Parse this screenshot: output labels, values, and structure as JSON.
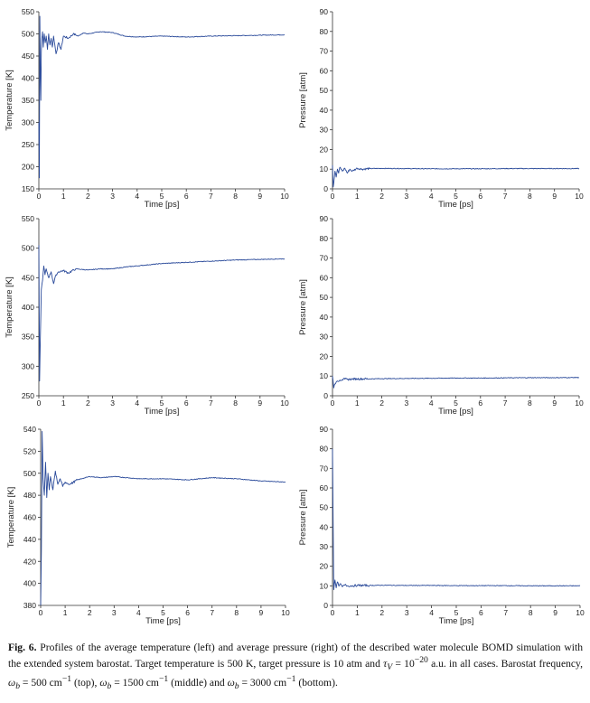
{
  "figure": {
    "caption_label": "Fig. 6.",
    "caption_part1": "Profiles of the average temperature (left) and average pressure (right) of the described water molecule BOMD simulation with the extended system barostat. Target temperature is 500 K, target pressure is 10 atm and ",
    "caption_tau": "τ",
    "caption_tau_sub": "V",
    "caption_part2": " = 10",
    "caption_exp": "−20",
    "caption_part3": " a.u. in all cases. Barostat frequency, ",
    "caption_omega1": "ω",
    "caption_b1": "b",
    "caption_part4": " = 500 cm",
    "caption_unit_exp1": "−1",
    "caption_part5": " (top), ",
    "caption_omega2": "ω",
    "caption_b2": "b",
    "caption_part6": " = 1500 cm",
    "caption_unit_exp2": "−1",
    "caption_part7": " (middle) and ",
    "caption_omega3": "ω",
    "caption_b3": "b",
    "caption_part8": " = 3000 cm",
    "caption_unit_exp3": "−1",
    "caption_part9": " (bottom)."
  },
  "chart_data": [
    {
      "type": "line",
      "row": "top",
      "quantity": "temperature",
      "xlabel": "Time [ps]",
      "ylabel": "Temperature [K]",
      "xlim": [
        0,
        10
      ],
      "ylim": [
        150,
        550
      ],
      "xticks": [
        0,
        1,
        2,
        3,
        4,
        5,
        6,
        7,
        8,
        9,
        10
      ],
      "yticks": [
        150,
        200,
        250,
        300,
        350,
        400,
        450,
        500,
        550
      ],
      "series_color": "#2a4a9a",
      "x": [
        0,
        0.02,
        0.04,
        0.06,
        0.08,
        0.1,
        0.12,
        0.15,
        0.18,
        0.22,
        0.26,
        0.3,
        0.35,
        0.4,
        0.45,
        0.5,
        0.55,
        0.6,
        0.7,
        0.8,
        0.9,
        1,
        1.2,
        1.4,
        1.6,
        1.8,
        2,
        2.5,
        3,
        3.5,
        4,
        5,
        6,
        7,
        8,
        9,
        10
      ],
      "y": [
        300,
        175,
        540,
        420,
        350,
        460,
        490,
        505,
        470,
        500,
        480,
        495,
        465,
        500,
        475,
        490,
        470,
        495,
        455,
        480,
        465,
        495,
        490,
        500,
        495,
        502,
        500,
        505,
        503,
        495,
        493,
        495,
        493,
        495,
        496,
        497,
        498
      ]
    },
    {
      "type": "line",
      "row": "top",
      "quantity": "pressure",
      "xlabel": "Time [ps]",
      "ylabel": "Pressure [atm]",
      "xlim": [
        0,
        10
      ],
      "ylim": [
        0,
        90
      ],
      "xticks": [
        0,
        1,
        2,
        3,
        4,
        5,
        6,
        7,
        8,
        9,
        10
      ],
      "yticks": [
        0,
        10,
        20,
        30,
        40,
        50,
        60,
        70,
        80,
        90
      ],
      "series_color": "#2a4a9a",
      "x": [
        0,
        0.03,
        0.06,
        0.1,
        0.15,
        0.2,
        0.25,
        0.3,
        0.4,
        0.5,
        0.6,
        0.7,
        0.8,
        1,
        1.2,
        1.5,
        2,
        3,
        4,
        5,
        6,
        7,
        8,
        9,
        10
      ],
      "y": [
        12,
        1,
        4,
        9,
        6,
        10,
        8,
        11,
        9,
        10.5,
        8,
        10,
        9,
        10.5,
        10,
        10.3,
        10.4,
        10.3,
        10.2,
        10.2,
        10.2,
        10.3,
        10.3,
        10.3,
        10.3
      ]
    },
    {
      "type": "line",
      "row": "middle",
      "quantity": "temperature",
      "xlabel": "Time [ps]",
      "ylabel": "Temperature [K]",
      "xlim": [
        0,
        10
      ],
      "ylim": [
        250,
        550
      ],
      "xticks": [
        0,
        1,
        2,
        3,
        4,
        5,
        6,
        7,
        8,
        9,
        10
      ],
      "yticks": [
        250,
        300,
        350,
        400,
        450,
        500,
        550
      ],
      "series_color": "#2a4a9a",
      "x": [
        0,
        0.03,
        0.06,
        0.1,
        0.15,
        0.2,
        0.25,
        0.3,
        0.4,
        0.5,
        0.6,
        0.7,
        0.8,
        1,
        1.2,
        1.5,
        2,
        2.5,
        3,
        3.5,
        4,
        4.5,
        5,
        6,
        7,
        8,
        9,
        10
      ],
      "y": [
        505,
        275,
        345,
        430,
        445,
        470,
        455,
        465,
        450,
        460,
        440,
        455,
        460,
        462,
        458,
        465,
        463,
        465,
        465,
        468,
        470,
        472,
        474,
        476,
        478,
        480,
        481,
        482
      ]
    },
    {
      "type": "line",
      "row": "middle",
      "quantity": "pressure",
      "xlabel": "Time [ps]",
      "ylabel": "Pressure [atm]",
      "xlim": [
        0,
        10
      ],
      "ylim": [
        0,
        90
      ],
      "xticks": [
        0,
        1,
        2,
        3,
        4,
        5,
        6,
        7,
        8,
        9,
        10
      ],
      "yticks": [
        0,
        10,
        20,
        30,
        40,
        50,
        60,
        70,
        80,
        90
      ],
      "series_color": "#2a4a9a",
      "x": [
        0,
        0.05,
        0.1,
        0.15,
        0.2,
        0.3,
        0.4,
        0.5,
        0.6,
        0.8,
        1,
        1.5,
        2,
        3,
        4,
        5,
        6,
        7,
        8,
        9,
        10
      ],
      "y": [
        10,
        4,
        6,
        7,
        7.5,
        8,
        8.2,
        8.5,
        8.3,
        8.5,
        8.6,
        8.6,
        8.7,
        8.8,
        8.9,
        9,
        9,
        9.1,
        9.2,
        9.2,
        9.3
      ]
    },
    {
      "type": "line",
      "row": "bottom",
      "quantity": "temperature",
      "xlabel": "Time [ps]",
      "ylabel": "Temperature [K]",
      "xlim": [
        0,
        10
      ],
      "ylim": [
        380,
        540
      ],
      "xticks": [
        0,
        1,
        2,
        3,
        4,
        5,
        6,
        7,
        8,
        9,
        10
      ],
      "yticks": [
        380,
        400,
        420,
        440,
        460,
        480,
        500,
        520,
        540
      ],
      "series_color": "#2a4a9a",
      "x": [
        0,
        0.03,
        0.06,
        0.1,
        0.15,
        0.2,
        0.25,
        0.3,
        0.35,
        0.4,
        0.5,
        0.6,
        0.7,
        0.8,
        0.9,
        1,
        1.2,
        1.5,
        2,
        2.5,
        3,
        3.5,
        4,
        5,
        6,
        7,
        8,
        9,
        10
      ],
      "y": [
        380,
        430,
        538,
        495,
        480,
        510,
        478,
        500,
        485,
        497,
        485,
        502,
        490,
        495,
        488,
        492,
        490,
        494,
        497,
        496,
        497,
        496,
        495,
        495,
        494,
        496,
        495,
        493,
        492
      ]
    },
    {
      "type": "line",
      "row": "bottom",
      "quantity": "pressure",
      "xlabel": "Time [ps]",
      "ylabel": "Pressure [atm]",
      "xlim": [
        0,
        10
      ],
      "ylim": [
        0,
        90
      ],
      "xticks": [
        0,
        1,
        2,
        3,
        4,
        5,
        6,
        7,
        8,
        9,
        10
      ],
      "yticks": [
        0,
        10,
        20,
        30,
        40,
        50,
        60,
        70,
        80,
        90
      ],
      "series_color": "#2a4a9a",
      "x": [
        0,
        0.05,
        0.1,
        0.15,
        0.2,
        0.25,
        0.3,
        0.4,
        0.5,
        0.6,
        0.8,
        1,
        1.5,
        2,
        3,
        4,
        5,
        6,
        7,
        8,
        9,
        10
      ],
      "y": [
        80,
        8,
        13,
        9,
        12,
        10,
        11,
        9.5,
        10.5,
        10,
        10,
        10.2,
        10.2,
        10.3,
        10.2,
        10.2,
        10.1,
        10.1,
        10.1,
        10,
        10,
        10
      ]
    }
  ]
}
